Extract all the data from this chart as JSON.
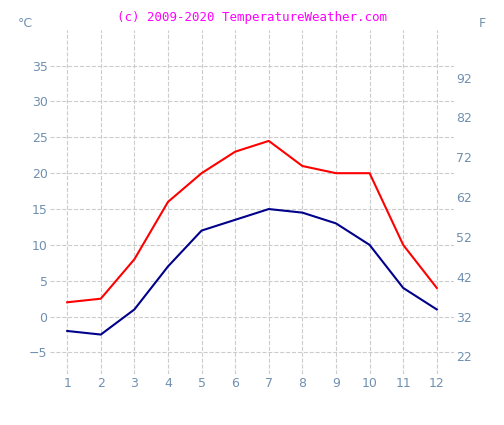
{
  "title": "(c) 2009-2020 TemperatureWeather.com",
  "title_color": "#ff00ff",
  "title_fontsize": 9,
  "ylabel_left": "°C",
  "ylabel_right": "F",
  "x": [
    1,
    2,
    3,
    4,
    5,
    6,
    7,
    8,
    9,
    10,
    11,
    12
  ],
  "red_line": [
    2,
    2.5,
    8,
    16,
    20,
    23,
    24.5,
    21,
    20,
    20,
    10,
    4
  ],
  "blue_line": [
    -2,
    -2.5,
    1,
    7,
    12,
    13.5,
    15,
    14.5,
    13,
    10,
    4,
    1
  ],
  "red_color": "red",
  "blue_color": "darkblue",
  "ylim_left": [
    -8,
    40
  ],
  "xlim": [
    0.5,
    12.5
  ],
  "yticks_left": [
    -5,
    0,
    5,
    10,
    15,
    20,
    25,
    30,
    35
  ],
  "yticks_right": [
    22,
    32,
    42,
    52,
    62,
    72,
    82,
    92
  ],
  "xticks": [
    1,
    2,
    3,
    4,
    5,
    6,
    7,
    8,
    9,
    10,
    11,
    12
  ],
  "grid_color": "#cccccc",
  "background_color": "#ffffff",
  "tick_color": "#7090b0",
  "label_fontsize": 9,
  "line_width": 1.5
}
